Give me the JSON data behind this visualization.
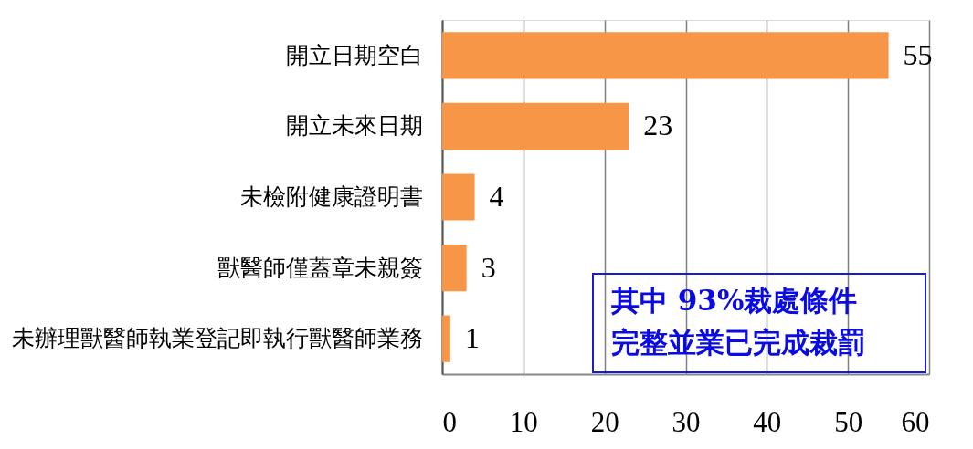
{
  "chart_data": {
    "type": "bar",
    "orientation": "horizontal",
    "categories": [
      "開立日期空白",
      "開立未來日期",
      "未檢附健康證明書",
      "獸醫師僅蓋章未親簽",
      "未辦理獸醫師執業登記即執行獸醫師業務"
    ],
    "values": [
      55,
      23,
      4,
      3,
      1
    ],
    "color": "#f79646",
    "xlim": [
      0,
      60
    ],
    "xticks": [
      0,
      10,
      20,
      30,
      40,
      50,
      60
    ],
    "grid": "x",
    "data_labels": true,
    "annotations": [
      "其中 93%裁處條件",
      "完整並業已完成裁罰"
    ]
  }
}
